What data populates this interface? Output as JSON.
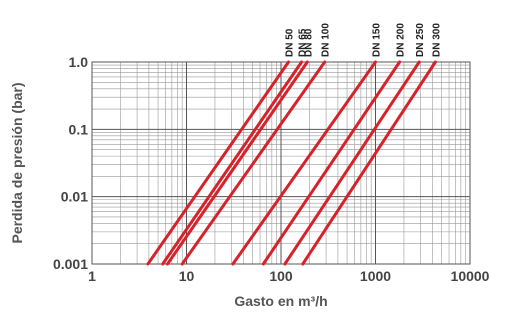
{
  "chart_data": {
    "type": "line",
    "title": "",
    "xlabel": "Gasto en m³/h",
    "ylabel": "Perdida de presión (bar)",
    "x_scale": "log",
    "y_scale": "log",
    "xlim": [
      1,
      10000
    ],
    "ylim": [
      0.001,
      1.0
    ],
    "grid": true,
    "x_ticks": [
      "1",
      "10",
      "100",
      "1000",
      "10000"
    ],
    "y_ticks": [
      "0.001",
      "0.01",
      "0.1",
      "1.0"
    ],
    "series_label_position": "top",
    "line_color": "#d6222a",
    "series": [
      {
        "name": "DN 50",
        "x": [
          3.9,
          120
        ],
        "y": [
          0.001,
          1.0
        ]
      },
      {
        "name": "DN 65",
        "x": [
          5.6,
          165
        ],
        "y": [
          0.001,
          1.0
        ]
      },
      {
        "name": "DN 80",
        "x": [
          6.3,
          190
        ],
        "y": [
          0.001,
          1.0
        ]
      },
      {
        "name": "DN 100",
        "x": [
          9.0,
          290
        ],
        "y": [
          0.001,
          1.0
        ]
      },
      {
        "name": "DN 150",
        "x": [
          31,
          1000
        ],
        "y": [
          0.001,
          1.0
        ]
      },
      {
        "name": "DN 200",
        "x": [
          65,
          1800
        ],
        "y": [
          0.001,
          1.0
        ]
      },
      {
        "name": "DN 250",
        "x": [
          110,
          2900
        ],
        "y": [
          0.001,
          1.0
        ]
      },
      {
        "name": "DN 300",
        "x": [
          170,
          4300
        ],
        "y": [
          0.001,
          1.0
        ]
      }
    ]
  }
}
